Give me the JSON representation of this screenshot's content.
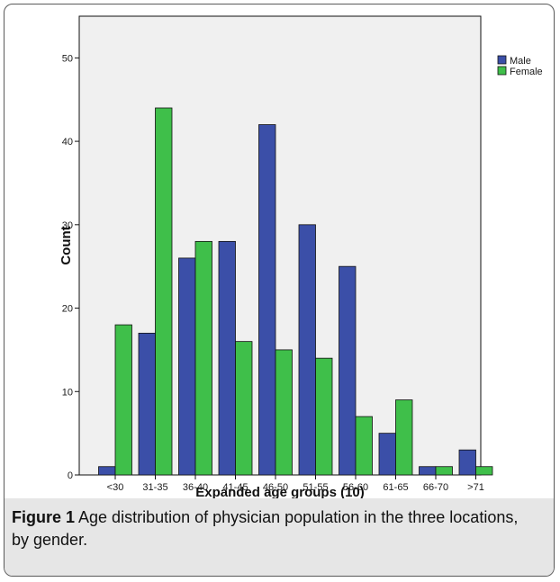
{
  "colors": {
    "male": "#3b4fa8",
    "female": "#3fbf4a",
    "plot_bg": "#f0f0f0",
    "stroke": "#111111"
  },
  "caption": {
    "figure_label": "Figure 1",
    "text": "Age distribution of physician population in the three locations, by gender."
  },
  "chart_data": {
    "type": "bar",
    "title": "",
    "xlabel": "Expanded age groups (10)",
    "ylabel": "Count",
    "categories": [
      "<30",
      "31-35",
      "36-40",
      "41-45",
      "46-50",
      "51-55",
      "56-60",
      "61-65",
      "66-70",
      ">71"
    ],
    "series": [
      {
        "name": "Male",
        "values": [
          1,
          17,
          26,
          28,
          42,
          30,
          25,
          5,
          1,
          3
        ]
      },
      {
        "name": "Female",
        "values": [
          18,
          44,
          28,
          16,
          15,
          14,
          7,
          9,
          1,
          1
        ]
      }
    ],
    "ylim": [
      0,
      55
    ],
    "yticks": [
      0,
      10,
      20,
      30,
      40,
      50
    ],
    "legend": "top-right",
    "grid": false
  }
}
